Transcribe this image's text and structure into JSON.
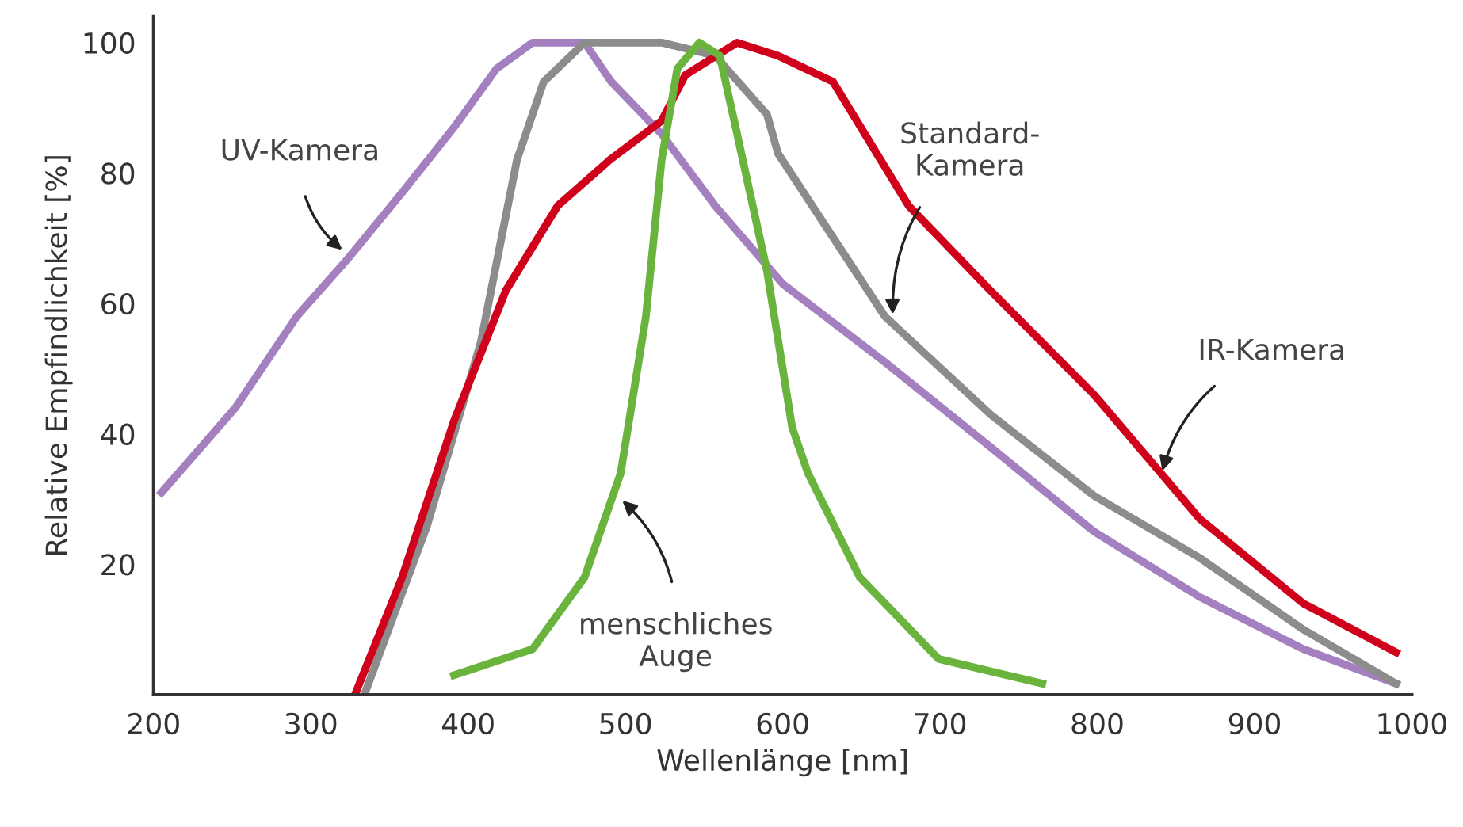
{
  "chart_data": {
    "type": "line",
    "xlabel": "Wellenlänge [nm]",
    "ylabel": "Relative Empfindlichkeit [%]",
    "xlim": [
      200,
      1000
    ],
    "ylim": [
      0,
      104
    ],
    "xticks": [
      200,
      300,
      400,
      500,
      600,
      700,
      800,
      900,
      1000
    ],
    "yticks": [
      20,
      40,
      60,
      80,
      100
    ],
    "grid": false,
    "legend": false,
    "marker": "none",
    "line_style": "solid",
    "series": [
      {
        "color": "#a580c0",
        "x": [
          205,
          252,
          291,
          324,
          358,
          391,
          418,
          441,
          474,
          491,
          523,
          557,
          600,
          665,
          732,
          798,
          865,
          931,
          990
        ],
        "values": [
          31,
          44,
          58,
          67,
          77,
          87,
          96,
          100,
          100,
          94,
          86,
          75,
          63,
          51,
          38,
          25,
          15,
          7,
          1.7
        ]
      },
      {
        "color": "#8c8c8c",
        "x": [
          334,
          374,
          408,
          431,
          448,
          474,
          523,
          557,
          590,
          597,
          665,
          732,
          798,
          865,
          931,
          990
        ],
        "values": [
          0,
          26,
          54,
          82,
          94,
          100,
          100,
          98,
          89,
          83,
          58,
          43,
          30.5,
          21,
          10,
          1.7
        ]
      },
      {
        "color": "#d0021b",
        "x": [
          328,
          358,
          391,
          424,
          457,
          490,
          523,
          538,
          571,
          597,
          632,
          680,
          732,
          798,
          865,
          931,
          990
        ],
        "values": [
          0,
          18,
          42,
          62,
          75,
          82,
          88,
          95,
          100,
          98,
          94,
          75,
          62,
          46,
          27,
          14,
          6.5
        ]
      },
      {
        "color": "#6ab43e",
        "x": [
          391,
          441,
          474,
          497,
          513,
          523,
          533,
          547,
          560,
          571,
          590,
          606,
          616,
          649,
          699,
          765
        ],
        "values": [
          3,
          7,
          18,
          34,
          58,
          82,
          96,
          100,
          98,
          86,
          65,
          41,
          34,
          18,
          5.5,
          1.7
        ]
      }
    ],
    "annotations": [
      {
        "text": "UV-Kamera",
        "x": 321,
        "y": 68
      },
      {
        "text": "Standard-\nKamera",
        "x": 670,
        "y": 58
      },
      {
        "text": "IR-Kamera",
        "x": 841,
        "y": 34
      },
      {
        "text": "menschliches\nAuge",
        "x": 497,
        "y": 30
      }
    ]
  }
}
